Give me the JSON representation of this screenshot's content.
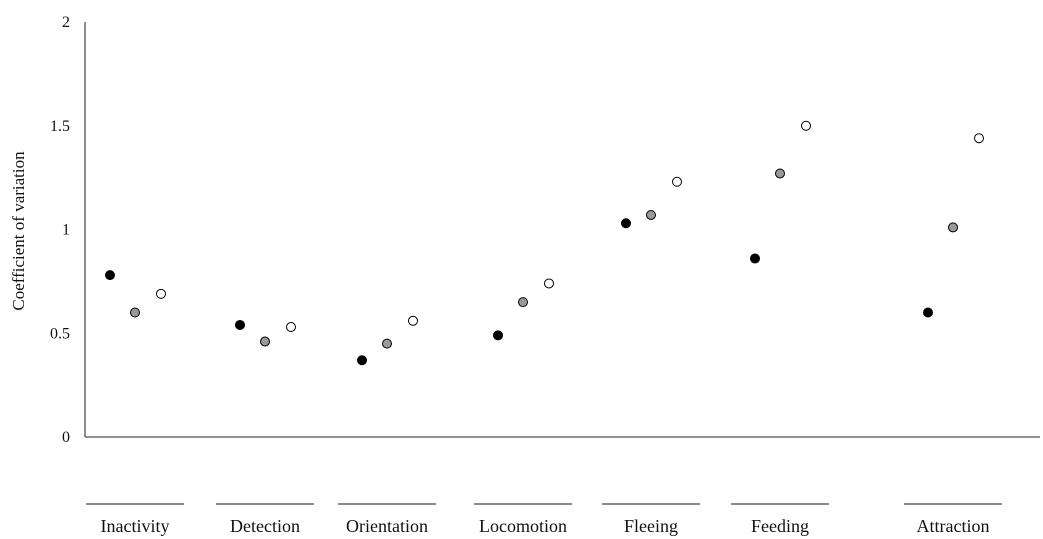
{
  "chart_data": {
    "type": "scatter",
    "title": "",
    "xlabel": "",
    "ylabel": "Coefficient of variation",
    "ylim": [
      0,
      2
    ],
    "yticks": [
      "0",
      "0.5",
      "1",
      "1.5",
      "2"
    ],
    "grid": false,
    "legend": "none",
    "categories": [
      "Inactivity",
      "Detection",
      "Orientation",
      "Locomotion",
      "Fleeing",
      "Feeding",
      "Attraction"
    ],
    "series": [
      {
        "color": "#000000",
        "values": [
          0.78,
          0.54,
          0.37,
          0.49,
          1.03,
          0.86,
          0.6
        ]
      },
      {
        "color": "#999999",
        "values": [
          0.6,
          0.46,
          0.45,
          0.65,
          1.07,
          1.27,
          1.01
        ]
      },
      {
        "color": "#ffffff",
        "values": [
          0.69,
          0.53,
          0.56,
          0.74,
          1.23,
          1.5,
          1.44
        ]
      }
    ]
  }
}
